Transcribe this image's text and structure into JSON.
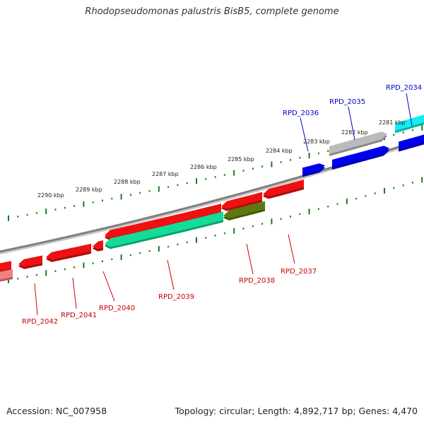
{
  "title": "Rhodopseudomonas palustris BisB5, complete genome",
  "accession": "Accession: NC_007958",
  "summary": "Topology: circular; Length: 4,892,717 bp; Genes: 4,470",
  "colors": {
    "backbone": "#7f7f7f",
    "ticks": "#1a7a1a",
    "forward_label": "#0000cc",
    "reverse_label": "#cc0000",
    "gene_red": "#ee1111",
    "gene_blue": "#0000ee",
    "gene_cyan": "#11eeee",
    "gene_grey": "#bbbbbb",
    "gene_teal": "#11dd99",
    "gene_olive": "#5a7a10"
  },
  "scale_labels": [
    "2281 kbp",
    "2282 kbp",
    "2283 kbp",
    "2284 kbp",
    "2285 kbp",
    "2286 kbp",
    "2287 kbp",
    "2288 kbp",
    "2289 kbp",
    "2290 kbp"
  ],
  "gene_labels": [
    {
      "text": "RPD_2034",
      "strand": "forward"
    },
    {
      "text": "RPD_2035",
      "strand": "forward"
    },
    {
      "text": "RPD_2036",
      "strand": "forward"
    },
    {
      "text": "RPD_2037",
      "strand": "reverse"
    },
    {
      "text": "RPD_2038",
      "strand": "reverse"
    },
    {
      "text": "RPD_2039",
      "strand": "reverse"
    },
    {
      "text": "RPD_2040",
      "strand": "reverse"
    },
    {
      "text": "RPD_2041",
      "strand": "reverse"
    },
    {
      "text": "RPD_2042",
      "strand": "reverse"
    }
  ]
}
